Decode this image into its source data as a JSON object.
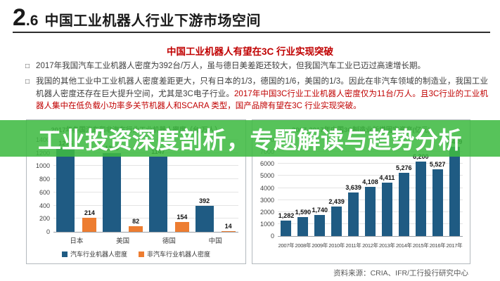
{
  "header": {
    "number_major": "2",
    "number_minor": ".6",
    "title": "中国工业机器人行业下游市场空间"
  },
  "subtitle": "中国工业机器人有望在3C 行业实现突破",
  "icons": {
    "bullet": "□"
  },
  "bullets": [
    {
      "text": "2017年我国汽车工业机器人密度为392台/万人，虽与德日美差距还较大，但我国汽车工业已迈过高速增长期。",
      "red_text": ""
    },
    {
      "text": "我国的其他工业中工业机器人密度差距更大，只有日本的1/3，德国的1/6，美国的1/3。因此在非汽车领域的制造业，我国工业机器人密度还存在巨大提升空间，尤其是3C电子行业。",
      "red_text": "2017年中国3C行业工业机器人密度仅为11台/万人。且3C行业的工业机器人集中在低负载小功率多关节机器人和SCARA 类型，国产品牌有望在3C 行业实现突破。"
    }
  ],
  "overlay": {
    "text": "工业投资深度剖析，专题解读与趋势分析",
    "background": "#3EBA42",
    "text_color": "#FFFFFF"
  },
  "source": "资料来源：CRIA、IFR/工行投行研究中心",
  "chart_data": [
    {
      "type": "bar",
      "title": "2017年各国汽车和非汽车行业工业机器人密度（台/万人）",
      "categories": [
        "日本",
        "美国",
        "德国",
        "中国"
      ],
      "series": [
        {
          "name": "汽车行业机器人密度",
          "color": "#1F5B83",
          "values": [
            1276,
            1200,
            1147,
            392
          ],
          "labels": [
            "1276",
            "1200",
            "1147",
            "392"
          ]
        },
        {
          "name": "非汽车行业机器人密度",
          "color": "#ED7D31",
          "values": [
            214,
            82,
            154,
            14
          ],
          "labels": [
            "214",
            "82",
            "154",
            "14"
          ]
        }
      ],
      "xlabel": "",
      "ylabel": "",
      "ylim": [
        0,
        1400
      ],
      "ytick_step": 200,
      "grid": true,
      "legend_position": "bottom"
    },
    {
      "type": "bar",
      "title": "2007-2017年中国3C制造业新增固定资产(亿元)",
      "categories": [
        "2007年",
        "2008年",
        "2009年",
        "2010年",
        "2011年",
        "2012年",
        "2013年",
        "2014年",
        "2015年",
        "2016年",
        "2017年"
      ],
      "series": [
        {
          "name": "3C制造业新增固定资产",
          "color": "#1F5B83",
          "values": [
            1282,
            1590,
            1740,
            2439,
            3639,
            4108,
            4411,
            5276,
            6200,
            5527,
            7439
          ],
          "labels": [
            "1,282",
            "1,590",
            "1,740",
            "2,439",
            "3,639",
            "4,108",
            "4,411",
            "5,276",
            "6,200",
            "5,527",
            "7,439"
          ]
        }
      ],
      "xlabel": "",
      "ylabel": "",
      "ylim": [
        0,
        8000
      ],
      "ytick_step": 1000,
      "grid": true,
      "legend_position": "none"
    }
  ]
}
